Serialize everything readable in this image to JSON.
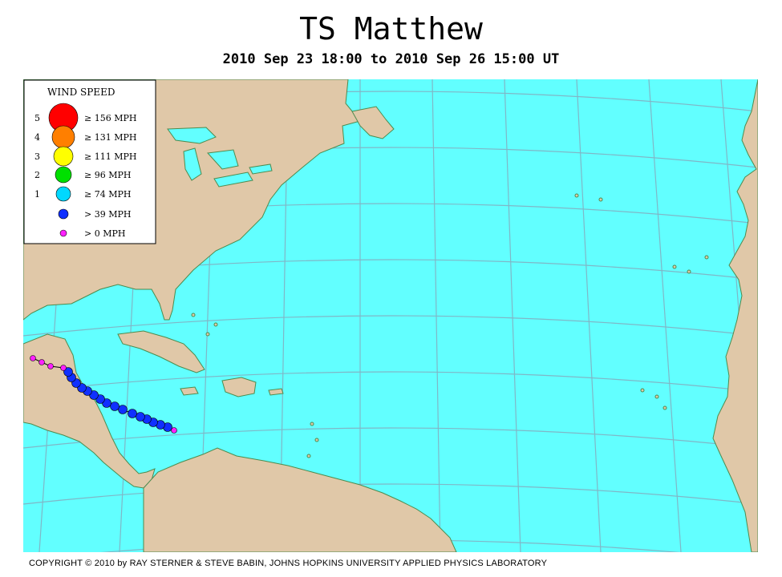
{
  "title": "TS Matthew",
  "subtitle": "2010 Sep 23 18:00 to 2010 Sep 26 15:00 UT",
  "copyright": "COPYRIGHT © 2010 by RAY STERNER & STEVE BABIN, JOHNS HOPKINS UNIVERSITY APPLIED PHYSICS LABORATORY",
  "colors": {
    "ocean": "#62ffff",
    "land": "#e0c8a8",
    "coast": "#4e8a4e",
    "grid": "#7fb7c7",
    "cat5": "#ff0000",
    "cat4": "#ff7f00",
    "cat3": "#ffff00",
    "cat2": "#00e000",
    "cat1": "#00d8ff",
    "ts": "#1030ff",
    "td": "#ff20ff"
  },
  "legend": {
    "title": "WIND SPEED",
    "items": [
      {
        "cat": "5",
        "label": "≥ 156 MPH",
        "color": "#ff0000"
      },
      {
        "cat": "4",
        "label": "≥ 131 MPH",
        "color": "#ff7f00"
      },
      {
        "cat": "3",
        "label": "≥ 111 MPH",
        "color": "#ffff00"
      },
      {
        "cat": "2",
        "label": "≥ 96 MPH",
        "color": "#00e000"
      },
      {
        "cat": "1",
        "label": "≥ 74 MPH",
        "color": "#00d8ff"
      },
      {
        "cat": "",
        "label": "> 39 MPH",
        "color": "#1030ff"
      },
      {
        "cat": "",
        "label": "> 0 MPH",
        "color": "#ff20ff"
      }
    ]
  },
  "track": [
    {
      "status": "td"
    },
    {
      "status": "ts"
    },
    {
      "status": "ts"
    },
    {
      "status": "ts"
    },
    {
      "status": "ts"
    },
    {
      "status": "ts"
    },
    {
      "status": "ts"
    },
    {
      "status": "ts"
    },
    {
      "status": "ts"
    },
    {
      "status": "ts"
    },
    {
      "status": "ts"
    },
    {
      "status": "ts"
    },
    {
      "status": "ts"
    },
    {
      "status": "ts"
    },
    {
      "status": "ts"
    },
    {
      "status": "ts"
    },
    {
      "status": "ts"
    },
    {
      "status": "td"
    },
    {
      "status": "td"
    },
    {
      "status": "td"
    },
    {
      "status": "td"
    }
  ]
}
